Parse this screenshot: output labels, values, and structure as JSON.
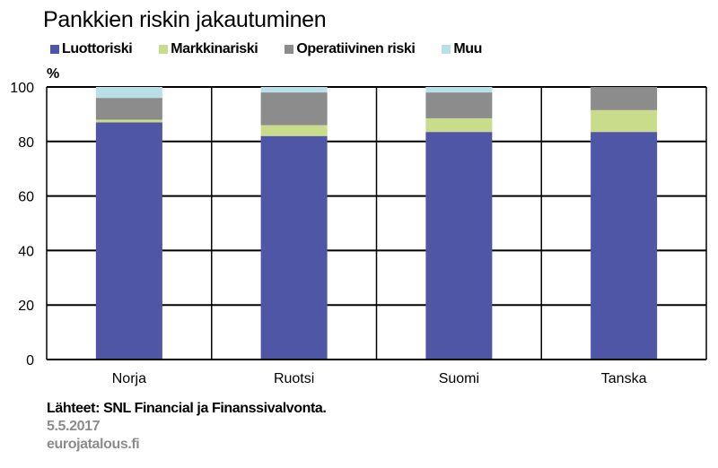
{
  "title": "Pankkien riskin jakautuminen",
  "unit_label": "%",
  "legend": [
    {
      "label": "Luottoriski",
      "color": "#4f56a6"
    },
    {
      "label": "Markkinariski",
      "color": "#c9dc8c"
    },
    {
      "label": "Operatiivinen riski",
      "color": "#8c8c8c"
    },
    {
      "label": "Muu",
      "color": "#b7e1e6"
    }
  ],
  "footer": {
    "source": "Lähteet: SNL Financial ja Finanssivalvonta.",
    "date": "5.5.2017",
    "site": "eurojatalous.fi"
  },
  "chart_data": {
    "type": "bar",
    "stacked": true,
    "categories": [
      "Norja",
      "Ruotsi",
      "Suomi",
      "Tanska"
    ],
    "series": [
      {
        "name": "Luottoriski",
        "values": [
          87,
          82,
          83.5,
          83.5
        ]
      },
      {
        "name": "Markkinariski",
        "values": [
          1,
          4,
          5,
          8
        ]
      },
      {
        "name": "Operatiivinen riski",
        "values": [
          8,
          12,
          9.5,
          8.5
        ]
      },
      {
        "name": "Muu",
        "values": [
          4,
          2,
          2,
          0
        ]
      }
    ],
    "ylim": [
      0,
      100
    ],
    "yticks": [
      0,
      20,
      40,
      60,
      80,
      100
    ],
    "ylabel": "%",
    "grid": true,
    "legend_position": "top"
  }
}
